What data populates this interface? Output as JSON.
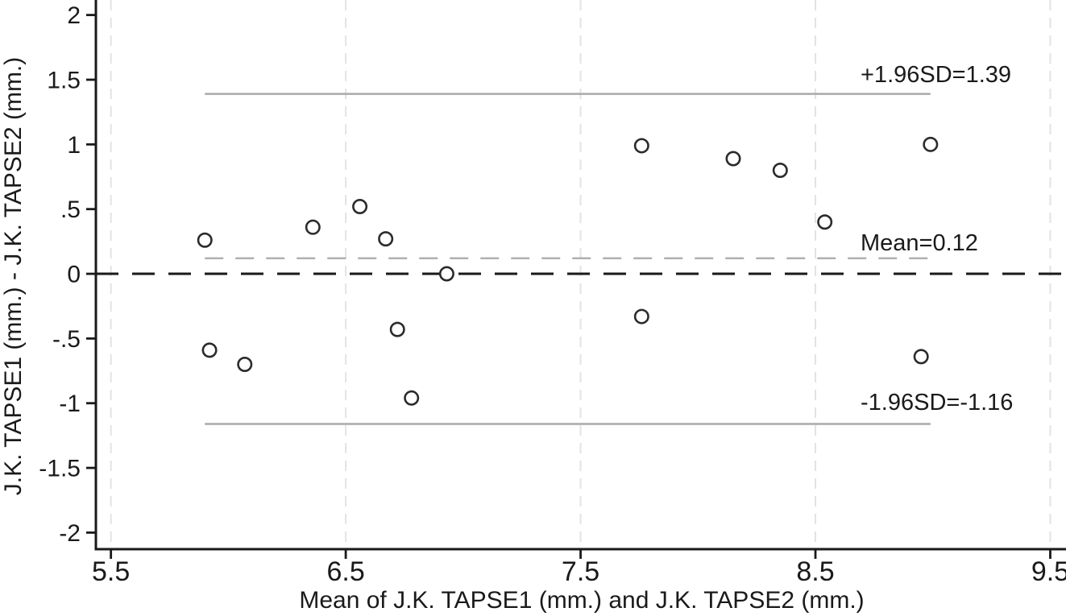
{
  "chart_data": {
    "type": "scatter",
    "title": "",
    "xlabel": "Mean of J.K. TAPSE1 (mm.) and J.K. TAPSE2 (mm.)",
    "ylabel": "J.K. TAPSE1 (mm.) - J.K. TAPSE2 (mm.)",
    "xlim": [
      5.436,
      9.567
    ],
    "ylim": [
      -2.128,
      2.116
    ],
    "x_ticks": {
      "values": [
        5.5,
        6.5,
        7.5,
        8.5,
        9.5
      ],
      "labels": [
        "5.5",
        "6.5",
        "7.5",
        "8.5",
        "9.5"
      ]
    },
    "y_ticks": {
      "values": [
        2,
        1.5,
        1,
        0.5,
        0,
        -0.5,
        -1,
        -1.5,
        -2
      ],
      "labels": [
        "2",
        "1.5",
        "1",
        ".5",
        "0",
        "-.5",
        "-1",
        "-1.5",
        "-2"
      ]
    },
    "grid": "vertical-dashed-at-x-ticks",
    "legend": "none",
    "marker": "open-circle",
    "points": [
      [
        5.9,
        0.26
      ],
      [
        5.92,
        -0.59
      ],
      [
        6.07,
        -0.7
      ],
      [
        6.36,
        0.36
      ],
      [
        6.56,
        0.52
      ],
      [
        6.67,
        0.27
      ],
      [
        6.72,
        -0.43
      ],
      [
        6.78,
        -0.96
      ],
      [
        6.93,
        0.0
      ],
      [
        7.76,
        0.99
      ],
      [
        7.76,
        -0.33
      ],
      [
        8.15,
        0.89
      ],
      [
        8.35,
        0.8
      ],
      [
        8.54,
        0.4
      ],
      [
        8.95,
        -0.64
      ],
      [
        8.99,
        1.0
      ]
    ],
    "reference_lines": [
      {
        "name": "upper-loa",
        "value": 1.39,
        "label": "+1.96SD=1.39",
        "style": "solid",
        "color": "#a9a9a9",
        "extent": "data"
      },
      {
        "name": "mean",
        "value": 0.12,
        "label": "Mean=0.12",
        "style": "dashed",
        "color": "#b0b0b0",
        "extent": "data"
      },
      {
        "name": "lower-loa",
        "value": -1.16,
        "label": "-1.96SD=-1.16",
        "style": "solid",
        "color": "#a9a9a9",
        "extent": "data"
      },
      {
        "name": "zero",
        "value": 0.0,
        "label": "",
        "style": "dashed",
        "color": "#1a1a1a",
        "extent": "full"
      }
    ],
    "colors": {
      "background": "#ffffff",
      "axis": "#1a1a1a",
      "tick_text": "#1a1a1a",
      "gridline": "#e3e3e3",
      "marker_stroke": "#2b2b2b",
      "marker_fill": "#ffffff"
    }
  }
}
